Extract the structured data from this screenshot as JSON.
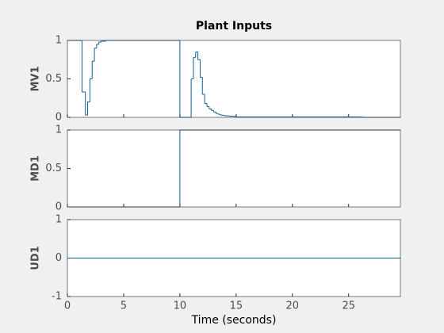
{
  "chart_data": [
    {
      "type": "stairs",
      "title": "Plant Inputs",
      "ylabel": "MV1",
      "x": [
        0,
        1.3,
        1.6,
        1.8,
        2.0,
        2.2,
        2.4,
        2.6,
        2.8,
        3.0,
        3.4,
        10.0,
        11.0,
        11.2,
        11.4,
        11.6,
        11.8,
        12.0,
        12.2,
        12.4,
        12.6,
        12.8,
        13.0,
        13.2,
        13.4,
        13.6,
        13.8,
        14.0,
        14.4,
        14.8,
        15.0,
        26.2
      ],
      "series": [
        {
          "color": "#0b5e94",
          "values": [
            1,
            0.33,
            0.03,
            0.2,
            0.5,
            0.73,
            0.9,
            0.95,
            0.98,
            0.99,
            1,
            0,
            0.5,
            0.78,
            0.85,
            0.75,
            0.52,
            0.3,
            0.18,
            0.14,
            0.11,
            0.09,
            0.07,
            0.05,
            0.04,
            0.03,
            0.025,
            0.02,
            0.015,
            0.01,
            0.005,
            0
          ]
        }
      ],
      "xlim": [
        0,
        29.6
      ],
      "ylim": [
        0,
        1
      ],
      "yticks": [
        0,
        0.5,
        1
      ]
    },
    {
      "type": "stairs",
      "ylabel": "MD1",
      "x": [
        0,
        10.0
      ],
      "series": [
        {
          "color": "#0b5e94",
          "values": [
            0,
            1
          ]
        }
      ],
      "xlim": [
        0,
        29.6
      ],
      "ylim": [
        0,
        1
      ],
      "yticks": [
        0,
        0.5,
        1
      ]
    },
    {
      "type": "stairs",
      "ylabel": "UD1",
      "xlabel": "Time (seconds)",
      "x": [
        0
      ],
      "series": [
        {
          "color": "#0b5e94",
          "values": [
            0
          ]
        }
      ],
      "xlim": [
        0,
        29.6
      ],
      "ylim": [
        -1,
        1
      ],
      "yticks": [
        -1,
        0,
        1
      ],
      "xticks": [
        0,
        5,
        10,
        15,
        20,
        25
      ]
    }
  ]
}
